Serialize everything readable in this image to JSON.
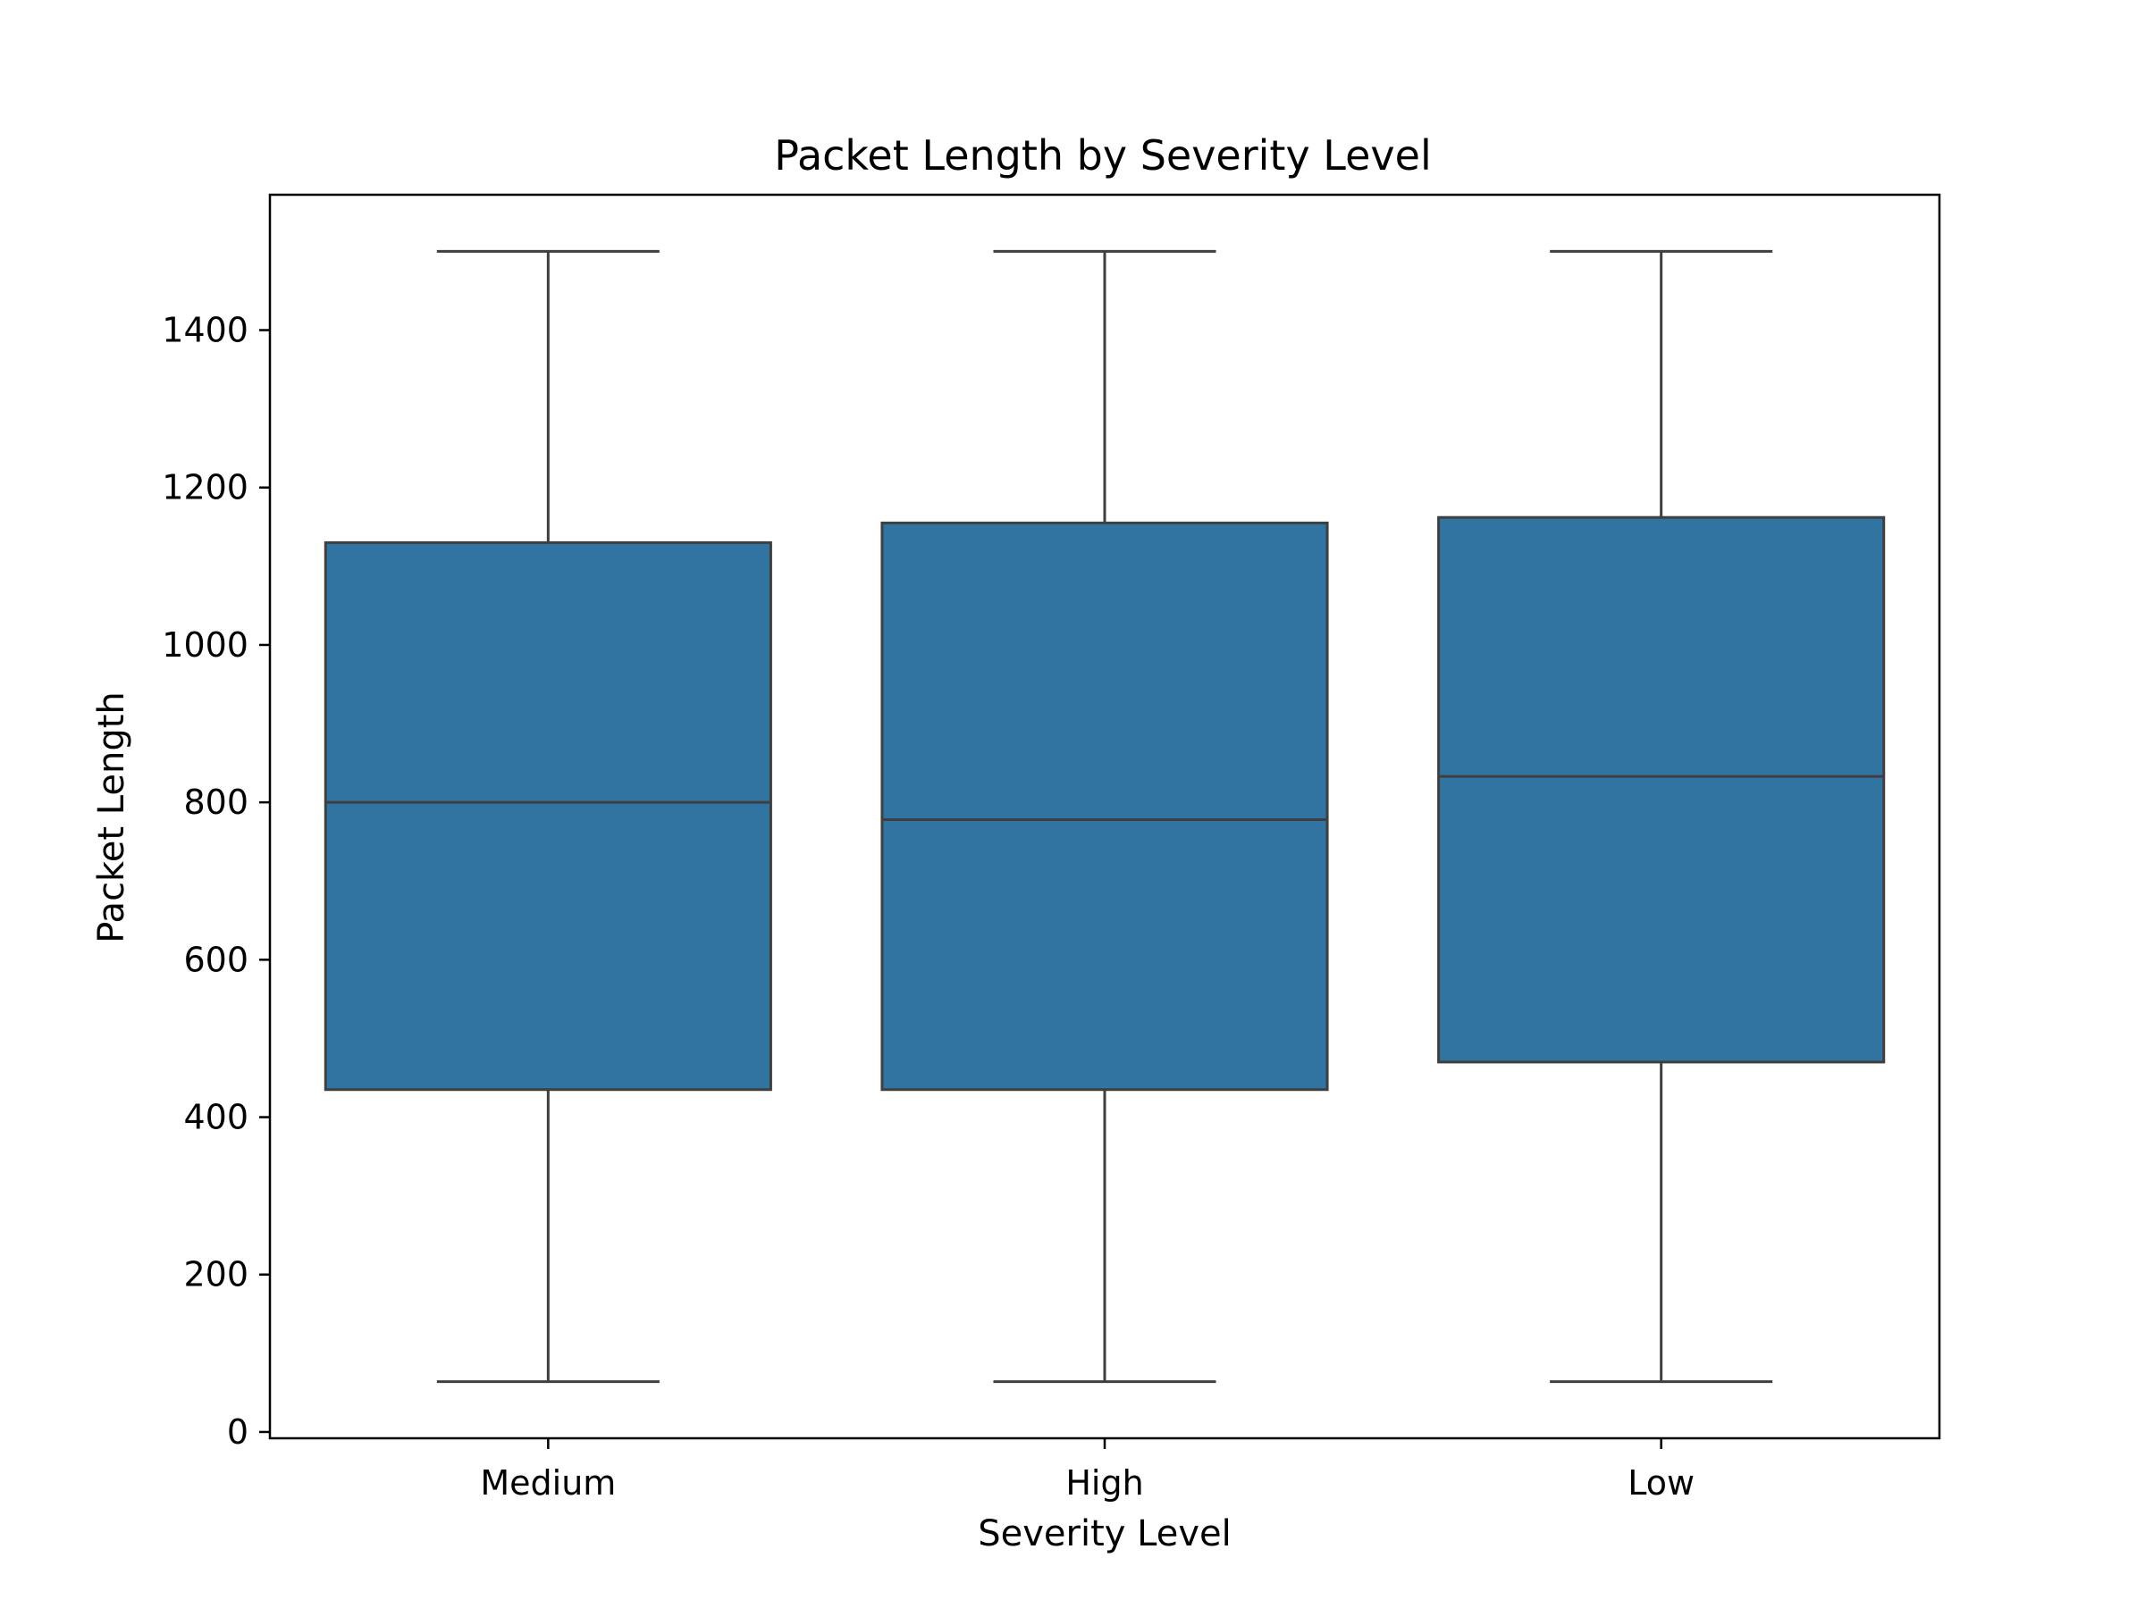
{
  "chart_data": {
    "type": "box",
    "title": "Packet Length by Severity Level",
    "xlabel": "Severity Level",
    "ylabel": "Packet Length",
    "ylim": [
      -8,
      1572
    ],
    "yticks": [
      0,
      200,
      400,
      600,
      800,
      1000,
      1200,
      1400
    ],
    "categories": [
      "Medium",
      "High",
      "Low"
    ],
    "boxes": [
      {
        "category": "Medium",
        "whisker_low": 64,
        "q1": 435,
        "median": 800,
        "q3": 1130,
        "whisker_high": 1500
      },
      {
        "category": "High",
        "whisker_low": 64,
        "q1": 435,
        "median": 778,
        "q3": 1155,
        "whisker_high": 1500
      },
      {
        "category": "Low",
        "whisker_low": 64,
        "q1": 470,
        "median": 833,
        "q3": 1162,
        "whisker_high": 1500
      }
    ],
    "box_color": "#3274a1",
    "line_color": "#3f3f3f",
    "grid": false,
    "legend": "none"
  }
}
